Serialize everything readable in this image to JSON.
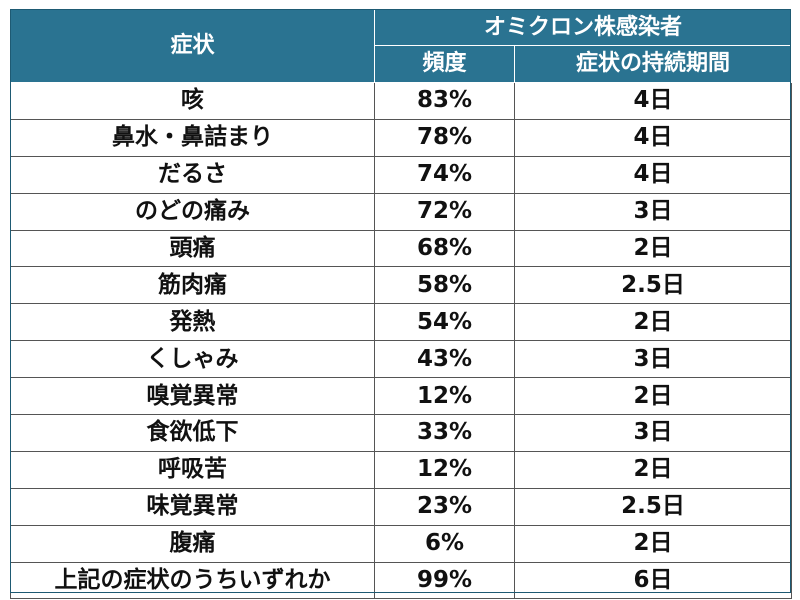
{
  "table": {
    "headers": {
      "symptom": "症状",
      "group": "オミクロン株感染者",
      "frequency": "頻度",
      "duration": "症状の持続期間"
    },
    "rows": [
      {
        "symptom": "咳",
        "frequency": "83%",
        "duration": "4日"
      },
      {
        "symptom": "鼻水・鼻詰まり",
        "frequency": "78%",
        "duration": "4日"
      },
      {
        "symptom": "だるさ",
        "frequency": "74%",
        "duration": "4日"
      },
      {
        "symptom": "のどの痛み",
        "frequency": "72%",
        "duration": "3日"
      },
      {
        "symptom": "頭痛",
        "frequency": "68%",
        "duration": "2日"
      },
      {
        "symptom": "筋肉痛",
        "frequency": "58%",
        "duration": "2.5日"
      },
      {
        "symptom": "発熱",
        "frequency": "54%",
        "duration": "2日"
      },
      {
        "symptom": "くしゃみ",
        "frequency": "43%",
        "duration": "3日"
      },
      {
        "symptom": "嗅覚異常",
        "frequency": "12%",
        "duration": "2日"
      },
      {
        "symptom": "食欲低下",
        "frequency": "33%",
        "duration": "3日"
      },
      {
        "symptom": "呼吸苦",
        "frequency": "12%",
        "duration": "2日"
      },
      {
        "symptom": "味覚異常",
        "frequency": "23%",
        "duration": "2.5日"
      },
      {
        "symptom": "腹痛",
        "frequency": "6%",
        "duration": "2日"
      },
      {
        "symptom": "上記の症状のうちいずれか",
        "frequency": "99%",
        "duration": "6日"
      }
    ]
  },
  "colors": {
    "header_background": "#2a7391",
    "header_text": "#ffffff",
    "cell_border": "#555555"
  }
}
